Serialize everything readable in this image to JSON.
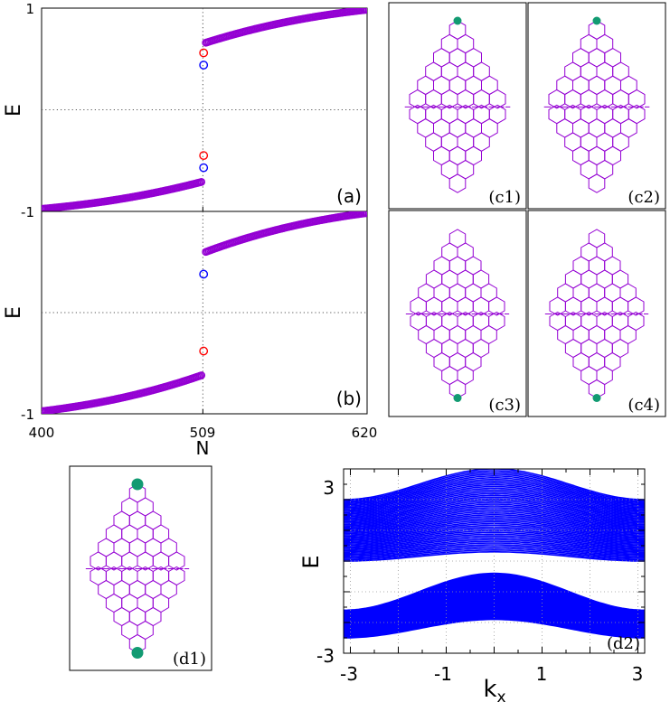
{
  "chart_data": [
    {
      "id": "a",
      "type": "scatter",
      "panel_label": "(a)",
      "xlabel": "",
      "ylabel": "E",
      "xlim": [
        400,
        620
      ],
      "ylim": [
        -1,
        1
      ],
      "yticks": [
        "-1",
        "1"
      ],
      "grid": true,
      "series": [
        {
          "color": "#9400d3",
          "x_range": [
            400,
            508
          ],
          "y_start": -0.975,
          "y_end": -0.71
        },
        {
          "color": "#9400d3",
          "x_range": [
            511,
            620
          ],
          "y_start": 0.66,
          "y_end": 0.985
        }
      ],
      "points": [
        {
          "x": 509.5,
          "y": 0.56,
          "color": "#ff0000"
        },
        {
          "x": 509.5,
          "y": 0.44,
          "color": "#0000ff"
        },
        {
          "x": 509.5,
          "y": -0.45,
          "color": "#ff0000"
        },
        {
          "x": 509.5,
          "y": -0.57,
          "color": "#0000ff"
        }
      ]
    },
    {
      "id": "b",
      "type": "scatter",
      "panel_label": "(b)",
      "xlabel": "N",
      "ylabel": "E",
      "xlim": [
        400,
        620
      ],
      "ylim": [
        -1,
        1
      ],
      "yticks": [
        "-1"
      ],
      "xticks": [
        "400",
        "509",
        "620"
      ],
      "grid": true,
      "series": [
        {
          "color": "#9400d3",
          "x_range": [
            400,
            508
          ],
          "y_start": -0.975,
          "y_end": -0.62
        },
        {
          "color": "#9400d3",
          "x_range": [
            511,
            620
          ],
          "y_start": 0.6,
          "y_end": 0.985
        }
      ],
      "points": [
        {
          "x": 509.5,
          "y": 0.38,
          "color": "#0000ff"
        },
        {
          "x": 509.5,
          "y": -0.38,
          "color": "#ff0000"
        }
      ]
    },
    {
      "id": "d2",
      "type": "area",
      "panel_label": "(d2)",
      "xlabel": "kx",
      "xlabel_main": "k",
      "xlabel_sub": "x",
      "ylabel": "E",
      "xlim": [
        -3.14159,
        3.14159
      ],
      "ylim": [
        -3,
        3
      ],
      "xticks": [
        "-3",
        "-1",
        "1",
        "3"
      ],
      "yticks": [
        "3",
        "-3"
      ],
      "grid": true,
      "color": "#0000ff",
      "bands": [
        {
          "lower_edge": [
            0.0,
            0.3
          ],
          "upper_edge": [
            2.0,
            3.0
          ]
        },
        {
          "lower_edge": [
            -2.5,
            -1.9
          ],
          "upper_edge": [
            -1.6,
            -0.4
          ]
        }
      ]
    }
  ],
  "lattice_panels": [
    {
      "id": "c1",
      "label": "(c1)",
      "dots": [
        "top"
      ]
    },
    {
      "id": "c2",
      "label": "(c2)",
      "dots": [
        "top"
      ]
    },
    {
      "id": "c3",
      "label": "(c3)",
      "dots": [
        "bottom"
      ]
    },
    {
      "id": "c4",
      "label": "(c4)",
      "dots": [
        "bottom"
      ]
    },
    {
      "id": "d1",
      "label": "(d1)",
      "dots": [
        "top",
        "bottom"
      ]
    }
  ],
  "colors": {
    "lattice": "#9400d3",
    "dot": "#129b72",
    "marker": "#9400d3",
    "red_marker": "#ff0000",
    "blue_marker": "#0000ff",
    "band": "#0000ff"
  }
}
